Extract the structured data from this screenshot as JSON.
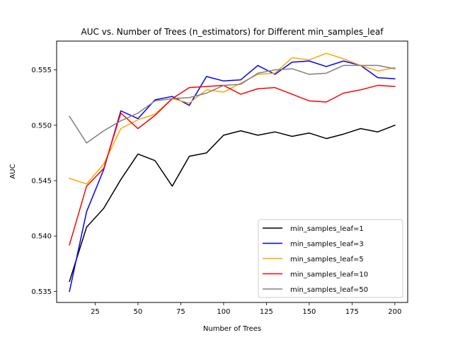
{
  "chart_data": {
    "type": "line",
    "title": "AUC vs. Number of Trees (n_estimators) for Different min_samples_leaf",
    "xlabel": "Number of Trees",
    "ylabel": "AUC",
    "xlim": [
      2.5,
      207.5
    ],
    "ylim": [
      0.534,
      0.5576
    ],
    "xticks": [
      25,
      50,
      75,
      100,
      125,
      150,
      175,
      200
    ],
    "xtick_labels": [
      "25",
      "50",
      "75",
      "100",
      "125",
      "150",
      "175",
      "200"
    ],
    "yticks": [
      0.535,
      0.54,
      0.545,
      0.55,
      0.555
    ],
    "ytick_labels": [
      "0.535",
      "0.540",
      "0.545",
      "0.550",
      "0.555"
    ],
    "grid": false,
    "legend_position": "lower-right",
    "x": [
      10,
      20,
      30,
      40,
      50,
      60,
      70,
      80,
      90,
      100,
      110,
      120,
      130,
      140,
      150,
      160,
      170,
      180,
      190,
      200
    ],
    "series": [
      {
        "name": "min_samples_leaf=1",
        "color": "#000000",
        "values": [
          0.5359,
          0.5408,
          0.5425,
          0.5451,
          0.5474,
          0.5468,
          0.5445,
          0.5472,
          0.5475,
          0.5491,
          0.5495,
          0.5491,
          0.5494,
          0.549,
          0.5493,
          0.5488,
          0.5492,
          0.5497,
          0.5494,
          0.55
        ]
      },
      {
        "name": "min_samples_leaf=3",
        "color": "#0000ff",
        "values": [
          0.535,
          0.5422,
          0.546,
          0.5513,
          0.5506,
          0.5523,
          0.5526,
          0.5518,
          0.5544,
          0.554,
          0.5541,
          0.5554,
          0.5546,
          0.5557,
          0.5558,
          0.5553,
          0.5558,
          0.5554,
          0.5543,
          0.5542
        ]
      },
      {
        "name": "min_samples_leaf=5",
        "color": "#ffa500",
        "values": [
          0.5452,
          0.5447,
          0.5465,
          0.5497,
          0.5505,
          0.551,
          0.5524,
          0.552,
          0.5532,
          0.553,
          0.5538,
          0.5546,
          0.5547,
          0.5561,
          0.5559,
          0.5565,
          0.556,
          0.5554,
          0.5549,
          0.5552
        ]
      },
      {
        "name": "min_samples_leaf=10",
        "color": "#ff0000",
        "values": [
          0.5392,
          0.5445,
          0.5461,
          0.5511,
          0.5497,
          0.5509,
          0.5524,
          0.5534,
          0.5535,
          0.5536,
          0.5528,
          0.5533,
          0.5534,
          0.5528,
          0.5522,
          0.5521,
          0.5529,
          0.5532,
          0.5536,
          0.5535
        ]
      },
      {
        "name": "min_samples_leaf=50",
        "color": "#808080",
        "values": [
          0.5508,
          0.5484,
          0.5495,
          0.5504,
          0.5511,
          0.5522,
          0.5524,
          0.5525,
          0.5529,
          0.5536,
          0.5537,
          0.5547,
          0.555,
          0.5551,
          0.5546,
          0.5547,
          0.5554,
          0.5554,
          0.5554,
          0.5551
        ]
      }
    ]
  }
}
